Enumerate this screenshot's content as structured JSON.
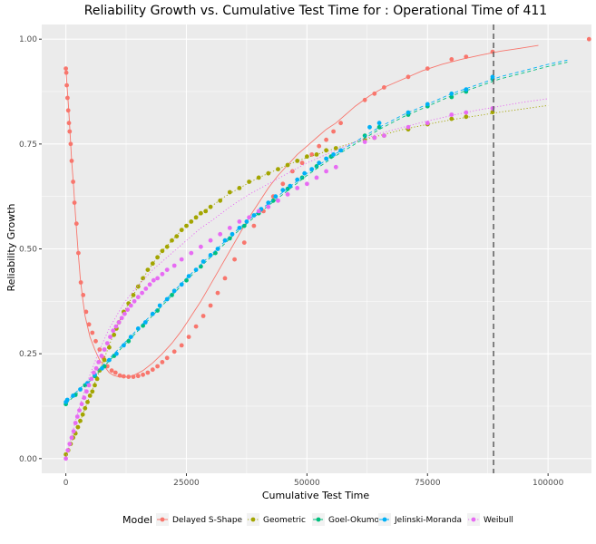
{
  "chart_data": {
    "type": "line",
    "title": "Reliability Growth vs. Cumulative Test Time for : Operational Time of 411",
    "xlabel": "Cumulative Test Time",
    "ylabel": "Reliability Growth",
    "xlim": [
      -5000,
      109000
    ],
    "ylim": [
      -0.035,
      1.035
    ],
    "xticks": [
      0,
      25000,
      50000,
      75000,
      100000
    ],
    "xtick_labels": [
      "0",
      "25000",
      "50000",
      "75000",
      "100000"
    ],
    "yticks": [
      0,
      0.25,
      0.5,
      0.75,
      1.0
    ],
    "ytick_labels": [
      "0.00",
      "0.25",
      "0.50",
      "0.75",
      "1.00"
    ],
    "grid": true,
    "vline": {
      "x": 88700,
      "style": "dashed"
    },
    "legend": {
      "title": "Model",
      "position": "bottom"
    },
    "series": [
      {
        "name": "Delayed S-Shape",
        "color": "#F8766D",
        "dash": "solid",
        "curve_x": [
          0,
          300,
          600,
          900,
          1200,
          1600,
          2000,
          2500,
          3000,
          3500,
          4000,
          5000,
          6000,
          7000,
          8000,
          9000,
          10000,
          11000,
          12000,
          13000,
          14000,
          16000,
          18000,
          20000,
          22000,
          24000,
          26000,
          28000,
          30000,
          32000,
          34000,
          36000,
          38000,
          40000,
          42000,
          44000,
          46000,
          48000,
          50000,
          52000,
          54000,
          56000,
          58000,
          60000,
          63000,
          66000,
          70000,
          74000,
          78000,
          82000,
          86000,
          90000,
          94000,
          98000
        ],
        "curve_y": [
          0.93,
          0.88,
          0.83,
          0.77,
          0.71,
          0.65,
          0.58,
          0.5,
          0.43,
          0.38,
          0.34,
          0.29,
          0.26,
          0.235,
          0.22,
          0.205,
          0.198,
          0.195,
          0.194,
          0.195,
          0.198,
          0.21,
          0.228,
          0.25,
          0.275,
          0.305,
          0.34,
          0.375,
          0.415,
          0.455,
          0.495,
          0.535,
          0.575,
          0.61,
          0.645,
          0.675,
          0.7,
          0.725,
          0.745,
          0.765,
          0.785,
          0.8,
          0.82,
          0.84,
          0.865,
          0.885,
          0.905,
          0.925,
          0.94,
          0.952,
          0.962,
          0.971,
          0.978,
          0.985
        ],
        "points_x": [
          0,
          100,
          200,
          350,
          500,
          650,
          800,
          1000,
          1200,
          1500,
          1800,
          2200,
          2600,
          3100,
          3600,
          4200,
          4800,
          5500,
          6200,
          7000,
          7800,
          8600,
          9500,
          10300,
          11200,
          12000,
          13000,
          14000,
          15000,
          16000,
          17000,
          18000,
          19000,
          20000,
          21000,
          22500,
          24000,
          25500,
          27000,
          28500,
          30000,
          31500,
          33000,
          35000,
          37000,
          39000,
          41000,
          43000,
          45000,
          47000,
          49000,
          51000,
          52500,
          54000,
          55500,
          57000,
          62000,
          64000,
          66000,
          71000,
          75000,
          80000,
          83000,
          88500,
          108500
        ],
        "points_y": [
          0.93,
          0.92,
          0.89,
          0.86,
          0.83,
          0.8,
          0.78,
          0.75,
          0.71,
          0.66,
          0.61,
          0.56,
          0.49,
          0.42,
          0.39,
          0.35,
          0.32,
          0.3,
          0.28,
          0.26,
          0.24,
          0.22,
          0.21,
          0.205,
          0.198,
          0.196,
          0.195,
          0.195,
          0.197,
          0.2,
          0.205,
          0.212,
          0.22,
          0.23,
          0.24,
          0.255,
          0.27,
          0.29,
          0.315,
          0.34,
          0.365,
          0.395,
          0.43,
          0.475,
          0.515,
          0.555,
          0.59,
          0.625,
          0.655,
          0.685,
          0.705,
          0.725,
          0.745,
          0.76,
          0.78,
          0.8,
          0.855,
          0.87,
          0.885,
          0.91,
          0.93,
          0.952,
          0.958,
          0.97,
          1.0
        ]
      },
      {
        "name": "Geometric",
        "color": "#A3A500",
        "dash": "dotted",
        "curve_x": [
          0,
          1000,
          2000,
          3000,
          4000,
          5000,
          6000,
          7000,
          8000,
          9000,
          10000,
          12000,
          14000,
          16000,
          18000,
          20000,
          22000,
          24000,
          26000,
          28000,
          30000,
          33000,
          36000,
          40000,
          44000,
          48000,
          52000,
          56000,
          60000,
          65000,
          70000,
          75000,
          80000,
          85000,
          90000,
          95000,
          100000
        ],
        "curve_y": [
          0.01,
          0.035,
          0.06,
          0.09,
          0.12,
          0.15,
          0.18,
          0.21,
          0.24,
          0.27,
          0.3,
          0.35,
          0.39,
          0.43,
          0.465,
          0.495,
          0.52,
          0.545,
          0.565,
          0.585,
          0.6,
          0.625,
          0.645,
          0.67,
          0.69,
          0.71,
          0.725,
          0.74,
          0.755,
          0.77,
          0.785,
          0.797,
          0.808,
          0.817,
          0.826,
          0.834,
          0.842
        ],
        "points_x": [
          0,
          500,
          1000,
          1500,
          2000,
          2500,
          3000,
          3500,
          4000,
          4500,
          5000,
          5500,
          6000,
          6500,
          7000,
          8000,
          9000,
          10000,
          10500,
          11000,
          12000,
          13000,
          14000,
          15000,
          16000,
          17000,
          18000,
          19000,
          20000,
          21000,
          22000,
          23000,
          24000,
          25000,
          26000,
          27000,
          28000,
          29000,
          30000,
          32000,
          34000,
          36000,
          38000,
          40000,
          42000,
          44000,
          46000,
          48000,
          50000,
          52000,
          54000,
          56000,
          62000,
          64000,
          66000,
          71000,
          75000,
          80000,
          83000,
          88500
        ],
        "points_y": [
          0.01,
          0.02,
          0.035,
          0.05,
          0.06,
          0.075,
          0.09,
          0.105,
          0.12,
          0.135,
          0.15,
          0.16,
          0.175,
          0.19,
          0.21,
          0.235,
          0.265,
          0.295,
          0.31,
          0.325,
          0.35,
          0.37,
          0.39,
          0.41,
          0.43,
          0.45,
          0.465,
          0.48,
          0.495,
          0.505,
          0.52,
          0.53,
          0.545,
          0.555,
          0.565,
          0.575,
          0.585,
          0.59,
          0.6,
          0.615,
          0.635,
          0.645,
          0.66,
          0.67,
          0.68,
          0.69,
          0.7,
          0.71,
          0.72,
          0.725,
          0.735,
          0.74,
          0.76,
          0.765,
          0.77,
          0.785,
          0.797,
          0.81,
          0.815,
          0.826
        ]
      },
      {
        "name": "Goel-Okumoto",
        "color": "#00BF7D",
        "dash": "dashed",
        "curve_x": [
          0,
          5000,
          10000,
          15000,
          20000,
          25000,
          30000,
          35000,
          40000,
          45000,
          50000,
          55000,
          60000,
          65000,
          70000,
          75000,
          80000,
          85000,
          90000,
          95000,
          100000,
          104000
        ],
        "curve_y": [
          0.13,
          0.185,
          0.245,
          0.305,
          0.365,
          0.425,
          0.48,
          0.535,
          0.585,
          0.63,
          0.675,
          0.715,
          0.75,
          0.785,
          0.815,
          0.84,
          0.865,
          0.885,
          0.905,
          0.92,
          0.935,
          0.945
        ],
        "points_x": [
          0,
          2000,
          4000,
          6000,
          8000,
          10000,
          13000,
          16000,
          19000,
          22000,
          25000,
          28000,
          31000,
          34000,
          37000,
          40000,
          43000,
          46000,
          49000,
          52000,
          55000,
          62000,
          65000,
          71000,
          75000,
          80000,
          83000,
          88500
        ],
        "points_y": [
          0.13,
          0.152,
          0.175,
          0.197,
          0.22,
          0.245,
          0.28,
          0.317,
          0.353,
          0.39,
          0.425,
          0.458,
          0.49,
          0.525,
          0.555,
          0.585,
          0.615,
          0.643,
          0.67,
          0.697,
          0.72,
          0.77,
          0.79,
          0.82,
          0.84,
          0.862,
          0.875,
          0.905
        ]
      },
      {
        "name": "Jelinski-Moranda",
        "color": "#00B0F6",
        "dash": "dashed",
        "curve_x": [
          0,
          5000,
          10000,
          15000,
          20000,
          25000,
          30000,
          35000,
          40000,
          45000,
          50000,
          55000,
          60000,
          65000,
          70000,
          75000,
          80000,
          85000,
          90000,
          95000,
          100000,
          104000
        ],
        "curve_y": [
          0.135,
          0.19,
          0.25,
          0.31,
          0.37,
          0.43,
          0.485,
          0.54,
          0.59,
          0.635,
          0.68,
          0.72,
          0.755,
          0.79,
          0.82,
          0.845,
          0.87,
          0.89,
          0.91,
          0.925,
          0.94,
          0.95
        ],
        "points_x": [
          0,
          300,
          1500,
          3000,
          4500,
          6000,
          7500,
          9000,
          10500,
          12000,
          13500,
          15000,
          16500,
          18000,
          19500,
          21000,
          22500,
          24000,
          25500,
          27000,
          28500,
          30000,
          31500,
          33000,
          34500,
          36000,
          37500,
          39000,
          40500,
          42000,
          43500,
          45000,
          46500,
          48000,
          49500,
          51000,
          52500,
          54000,
          55500,
          57000,
          63000,
          65000,
          71000,
          75000,
          80000,
          83000,
          88500
        ],
        "points_y": [
          0.135,
          0.14,
          0.15,
          0.165,
          0.18,
          0.2,
          0.215,
          0.235,
          0.25,
          0.27,
          0.29,
          0.31,
          0.325,
          0.345,
          0.365,
          0.38,
          0.4,
          0.415,
          0.435,
          0.45,
          0.47,
          0.485,
          0.5,
          0.52,
          0.535,
          0.55,
          0.565,
          0.58,
          0.595,
          0.61,
          0.625,
          0.64,
          0.65,
          0.665,
          0.68,
          0.69,
          0.705,
          0.715,
          0.725,
          0.735,
          0.79,
          0.8,
          0.825,
          0.845,
          0.87,
          0.88,
          0.91
        ]
      },
      {
        "name": "Weibull",
        "color": "#E76BF3",
        "dash": "dotted",
        "curve_x": [
          0,
          1000,
          2000,
          3000,
          4000,
          5000,
          6000,
          7000,
          8000,
          9000,
          10000,
          12000,
          14000,
          16000,
          18000,
          20000,
          22000,
          24000,
          26000,
          28000,
          30000,
          34000,
          38000,
          42000,
          46000,
          50000,
          55000,
          60000,
          65000,
          70000,
          75000,
          80000,
          85000,
          90000,
          95000,
          100000
        ],
        "curve_y": [
          0.0,
          0.045,
          0.09,
          0.13,
          0.165,
          0.2,
          0.23,
          0.26,
          0.285,
          0.31,
          0.33,
          0.37,
          0.4,
          0.425,
          0.45,
          0.47,
          0.49,
          0.51,
          0.53,
          0.55,
          0.565,
          0.6,
          0.63,
          0.655,
          0.68,
          0.705,
          0.73,
          0.755,
          0.775,
          0.79,
          0.805,
          0.818,
          0.83,
          0.84,
          0.85,
          0.858
        ],
        "points_x": [
          0,
          400,
          800,
          1200,
          1600,
          2000,
          2400,
          2800,
          3300,
          3800,
          4300,
          4800,
          5300,
          5800,
          6300,
          6800,
          7400,
          8000,
          8600,
          9200,
          9800,
          10400,
          11000,
          11600,
          12200,
          12800,
          13500,
          14200,
          15000,
          15800,
          16600,
          17400,
          18200,
          19000,
          20000,
          21000,
          22500,
          24000,
          26000,
          28000,
          30000,
          32000,
          34000,
          36000,
          38000,
          40000,
          42000,
          44000,
          46000,
          48000,
          50000,
          52000,
          54000,
          56000,
          62000,
          64000,
          66000,
          71000,
          75000,
          80000,
          83000,
          88500
        ],
        "points_y": [
          0.0,
          0.02,
          0.035,
          0.05,
          0.065,
          0.085,
          0.1,
          0.115,
          0.13,
          0.145,
          0.16,
          0.175,
          0.19,
          0.205,
          0.215,
          0.23,
          0.245,
          0.26,
          0.275,
          0.29,
          0.305,
          0.315,
          0.325,
          0.335,
          0.345,
          0.355,
          0.365,
          0.375,
          0.385,
          0.395,
          0.405,
          0.415,
          0.425,
          0.43,
          0.44,
          0.45,
          0.46,
          0.475,
          0.49,
          0.505,
          0.52,
          0.535,
          0.55,
          0.565,
          0.575,
          0.59,
          0.6,
          0.615,
          0.63,
          0.645,
          0.655,
          0.67,
          0.685,
          0.695,
          0.755,
          0.765,
          0.77,
          0.79,
          0.8,
          0.82,
          0.825,
          0.835
        ]
      }
    ]
  }
}
